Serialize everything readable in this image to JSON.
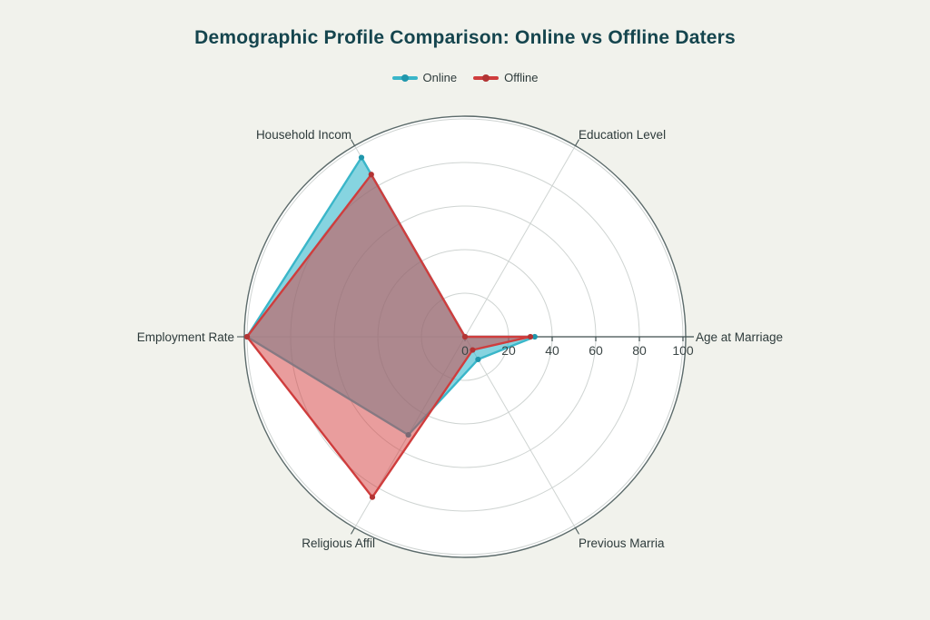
{
  "page": {
    "background": "#f1f2ec"
  },
  "header": {
    "title_color": "#15454e"
  },
  "chart_data": {
    "type": "radar",
    "title": "Demographic Profile Comparison: Online vs Offline Daters",
    "categories": [
      "Age at Marriage",
      "Education Level",
      "Household Incom",
      "Employment Rate",
      "Religious Affil",
      "Previous Marria"
    ],
    "series": [
      {
        "name": "Online",
        "values": [
          32,
          0,
          95,
          100,
          52,
          12
        ],
        "line_color": "#3ab6c9",
        "fill_color": "rgba(53,184,204,0.60)",
        "marker_color": "#2097ac"
      },
      {
        "name": "Offline",
        "values": [
          30,
          0,
          86,
          100,
          85,
          7
        ],
        "line_color": "#cf3d3d",
        "fill_color": "rgba(212,60,60,0.50)",
        "marker_color": "#b23434"
      }
    ],
    "radial_ticks": [
      0,
      20,
      40,
      60,
      80,
      100
    ],
    "range": [
      0,
      100
    ],
    "legend_position": "top-center",
    "grid": true,
    "grid_color": "#cfd4d2",
    "axis_line_color": "#3e4e4e",
    "outer_ring_color": "#5c6b6b",
    "plot_bg": "#ffffff",
    "label_color": "#2e3b3b",
    "tick_label_color": "#3c4646"
  }
}
